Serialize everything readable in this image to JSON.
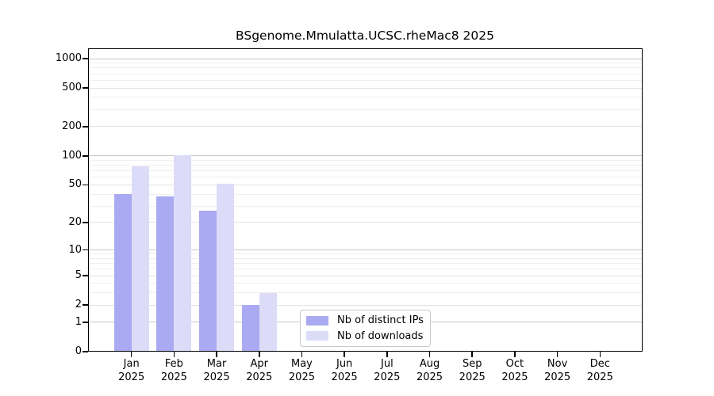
{
  "figure": {
    "title": "BSgenome.Mmulatta.UCSC.rheMac8 2025"
  },
  "chart_data": {
    "type": "bar",
    "title": "BSgenome.Mmulatta.UCSC.rheMac8 2025",
    "categories": [
      "Jan 2025",
      "Feb 2025",
      "Mar 2025",
      "Apr 2025",
      "May 2025",
      "Jun 2025",
      "Jul 2025",
      "Aug 2025",
      "Sep 2025",
      "Oct 2025",
      "Nov 2025",
      "Dec 2025"
    ],
    "category_months": [
      "Jan",
      "Feb",
      "Mar",
      "Apr",
      "May",
      "Jun",
      "Jul",
      "Aug",
      "Sep",
      "Oct",
      "Nov",
      "Dec"
    ],
    "category_year": "2025",
    "series": [
      {
        "name": "Nb of distinct IPs",
        "color": "#aaaaf2",
        "values": [
          40,
          38,
          27,
          2,
          0,
          0,
          0,
          0,
          0,
          0,
          0,
          0
        ]
      },
      {
        "name": "Nb of downloads",
        "color": "#dcdcf8",
        "values": [
          78,
          102,
          51,
          3,
          0,
          0,
          0,
          0,
          0,
          0,
          0,
          0
        ]
      }
    ],
    "yscale": "log1p",
    "ylim": [
      0,
      1250
    ],
    "yticks": [
      0,
      1,
      2,
      5,
      10,
      20,
      50,
      100,
      200,
      500,
      1000
    ],
    "minor_yticks": [
      3,
      4,
      6,
      7,
      8,
      9,
      30,
      40,
      60,
      70,
      80,
      90,
      300,
      400,
      600,
      700,
      800,
      900
    ],
    "grid": true,
    "legend_position": "lower center"
  },
  "colors": {
    "bar_distinct_ips": "#aaaaf2",
    "bar_downloads": "#dcdcf8",
    "grid_decade": "#c8c8c8",
    "grid_labeled": "#e2e2e2",
    "grid_minor": "#efefef",
    "axis": "#000000",
    "background": "#ffffff",
    "legend_border": "#c9c9c9"
  }
}
